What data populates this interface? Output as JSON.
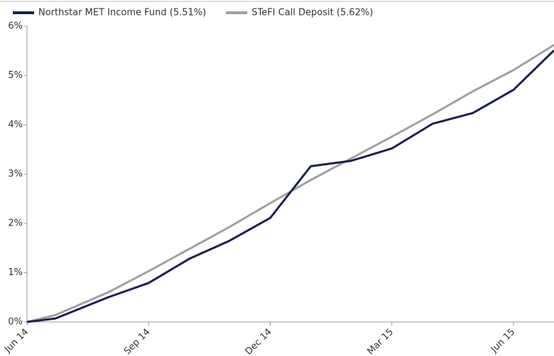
{
  "chart_data": {
    "type": "line",
    "x": [
      0,
      0.7,
      2,
      3,
      4,
      5,
      6,
      7,
      8,
      9,
      10,
      11,
      12,
      13
    ],
    "series": [
      {
        "name": "Northstar MET Income Fund (5.51%)",
        "color": "#1b2150",
        "values": [
          0,
          0.07,
          0.5,
          0.79,
          1.28,
          1.65,
          2.11,
          3.16,
          3.27,
          3.52,
          4.02,
          4.24,
          4.71,
          5.51
        ]
      },
      {
        "name": "STeFI Call Deposit (5.62%)",
        "color": "#a0a0a0",
        "values": [
          0,
          0.14,
          0.6,
          1.03,
          1.48,
          1.93,
          2.41,
          2.88,
          3.32,
          3.76,
          4.21,
          4.68,
          5.11,
          5.62
        ]
      }
    ],
    "xlim": [
      0,
      13
    ],
    "xticks": [
      {
        "value": 0,
        "label": "Jun 14"
      },
      {
        "value": 3,
        "label": "Sep 14"
      },
      {
        "value": 6,
        "label": "Dec 14"
      },
      {
        "value": 9,
        "label": "Mar 15"
      },
      {
        "value": 12,
        "label": "Jun 15"
      }
    ],
    "ylim": [
      0,
      6
    ],
    "yticks": [
      {
        "value": 0,
        "label": "0%"
      },
      {
        "value": 1,
        "label": "1%"
      },
      {
        "value": 2,
        "label": "2%"
      },
      {
        "value": 3,
        "label": "3%"
      },
      {
        "value": 4,
        "label": "4%"
      },
      {
        "value": 5,
        "label": "5%"
      },
      {
        "value": 6,
        "label": "6%"
      }
    ],
    "legend": "top-left"
  }
}
